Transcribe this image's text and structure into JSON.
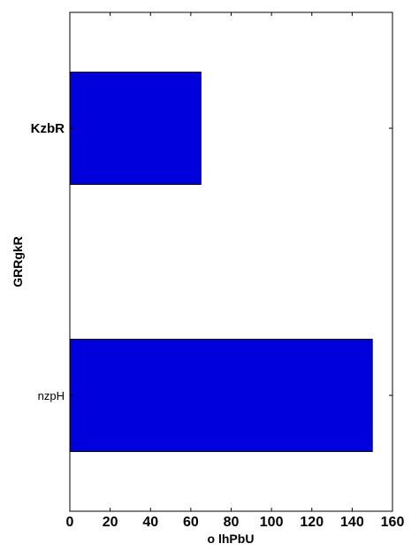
{
  "chart_data": {
    "type": "bar",
    "orientation": "horizontal",
    "categories": [
      "KzbR",
      "nzpH"
    ],
    "category_bold": [
      true,
      false
    ],
    "values": [
      65,
      150
    ],
    "xlabel": "o lhPbU",
    "ylabel": "GRRgkR",
    "xlim": [
      0,
      160
    ],
    "xticks": [
      0,
      20,
      40,
      60,
      80,
      100,
      120,
      140,
      160
    ],
    "bar_color": "#0000dd",
    "grid": false,
    "legend": "none"
  }
}
